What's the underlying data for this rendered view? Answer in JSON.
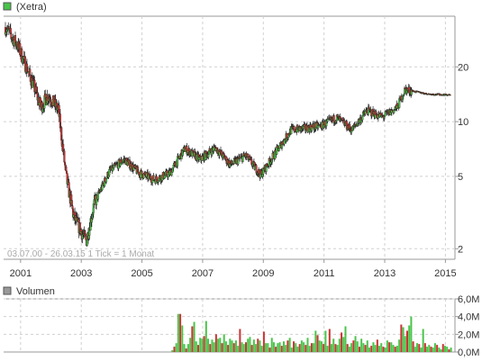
{
  "chart_data": [
    {
      "type": "candlestick",
      "legend": {
        "label": "(Xetra)",
        "color": "#4ac44a"
      },
      "info_text": "03.07.00 - 26.03.15   1 Tick = 1 Monat",
      "scale": "log",
      "ylim": [
        1.75,
        38
      ],
      "y_ticks": [
        {
          "value": 2,
          "label": "2"
        },
        {
          "value": 5,
          "label": "5"
        },
        {
          "value": 10,
          "label": "10"
        },
        {
          "value": 20,
          "label": "20"
        }
      ],
      "x_ticks": [
        "2001",
        "2003",
        "2005",
        "2007",
        "2009",
        "2011",
        "2013",
        "2015"
      ],
      "colors": {
        "up": "#4ac44a",
        "down": "#cc3333",
        "grid": "#d0d0d0"
      },
      "close_anchors": [
        [
          "2000-07",
          33
        ],
        [
          "2000-12",
          26
        ],
        [
          "2001-06",
          16
        ],
        [
          "2001-09",
          12
        ],
        [
          "2001-12",
          14
        ],
        [
          "2002-04",
          11.5
        ],
        [
          "2002-07",
          5
        ],
        [
          "2002-10",
          3
        ],
        [
          "2003-03",
          2.2
        ],
        [
          "2003-06",
          3.5
        ],
        [
          "2003-12",
          5.3
        ],
        [
          "2004-06",
          6.2
        ],
        [
          "2004-12",
          5.2
        ],
        [
          "2005-06",
          4.8
        ],
        [
          "2005-12",
          5.2
        ],
        [
          "2006-06",
          7.1
        ],
        [
          "2006-12",
          6.2
        ],
        [
          "2007-06",
          7.2
        ],
        [
          "2007-12",
          5.8
        ],
        [
          "2008-06",
          6.5
        ],
        [
          "2008-12",
          5.1
        ],
        [
          "2009-06",
          6.8
        ],
        [
          "2009-12",
          9.0
        ],
        [
          "2010-06",
          9.2
        ],
        [
          "2010-12",
          9.5
        ],
        [
          "2011-06",
          10.5
        ],
        [
          "2011-12",
          9.0
        ],
        [
          "2012-06",
          11.5
        ],
        [
          "2012-12",
          10.6
        ],
        [
          "2013-06",
          12
        ],
        [
          "2013-09",
          15
        ],
        [
          "2014-06",
          14.2
        ],
        [
          "2015-03",
          14
        ]
      ],
      "volume": {
        "legend": {
          "label": "Volumen",
          "color": "#999999"
        },
        "unit": "M",
        "ylim": [
          0,
          6
        ],
        "y_ticks": [
          {
            "value": 0,
            "label": "0,0M"
          },
          {
            "value": 2,
            "label": "2,0M"
          },
          {
            "value": 4,
            "label": "4,0M"
          },
          {
            "value": 6,
            "label": "6,0M"
          }
        ],
        "start": "2006-01",
        "values": [
          0.2,
          0.6,
          1.0,
          4.3,
          4.3,
          3.0,
          0.9,
          0.4,
          0.9,
          1.6,
          2.9,
          3.4,
          1.2,
          0.8,
          1.6,
          1.5,
          1.8,
          3.5,
          1.5,
          0.9,
          1.4,
          1.1,
          2.0,
          1.5,
          1.6,
          1.0,
          2.0,
          1.2,
          0.8,
          1.5,
          1.3,
          1.0,
          1.3,
          0.7,
          2.6,
          1.1,
          0.9,
          1.1,
          1.5,
          1.7,
          0.8,
          1.4,
          0.9,
          1.5,
          1.3,
          0.7,
          2.3,
          1.0,
          1.0,
          0.5,
          1.6,
          1.1,
          0.6,
          1.0,
          1.1,
          0.7,
          1.2,
          0.8,
          1.3,
          1.6,
          0.5,
          1.2,
          1.0,
          0.6,
          0.9,
          1.3,
          1.1,
          0.8,
          1.6,
          0.7,
          1.0,
          1.0,
          2.4,
          1.9,
          1.3,
          1.2,
          0.9,
          2.4,
          0.7,
          2.6,
          0.9,
          1.5,
          0.9,
          0.8,
          1.5,
          2.2,
          1.7,
          2.9,
          0.9,
          0.6,
          1.0,
          1.3,
          1.8,
          1.2,
          0.6,
          1.5,
          1.0,
          0.8,
          1.3,
          0.5,
          0.7,
          1.1,
          0.8,
          1.4,
          0.7,
          1.0,
          0.6,
          0.5,
          1.3,
          1.1,
          1.1,
          0.8,
          0.6,
          0.7,
          1.4,
          3.1,
          2.8,
          1.8,
          2.4,
          3.0,
          4.0,
          1.2,
          0.6,
          1.0,
          0.9,
          0.5,
          2.6,
          1.0,
          0.6,
          0.8,
          0.6,
          0.5,
          1.0,
          0.8,
          0.5,
          0.3,
          0.9,
          0.7,
          0.6,
          0.3,
          0.5
        ]
      }
    }
  ]
}
